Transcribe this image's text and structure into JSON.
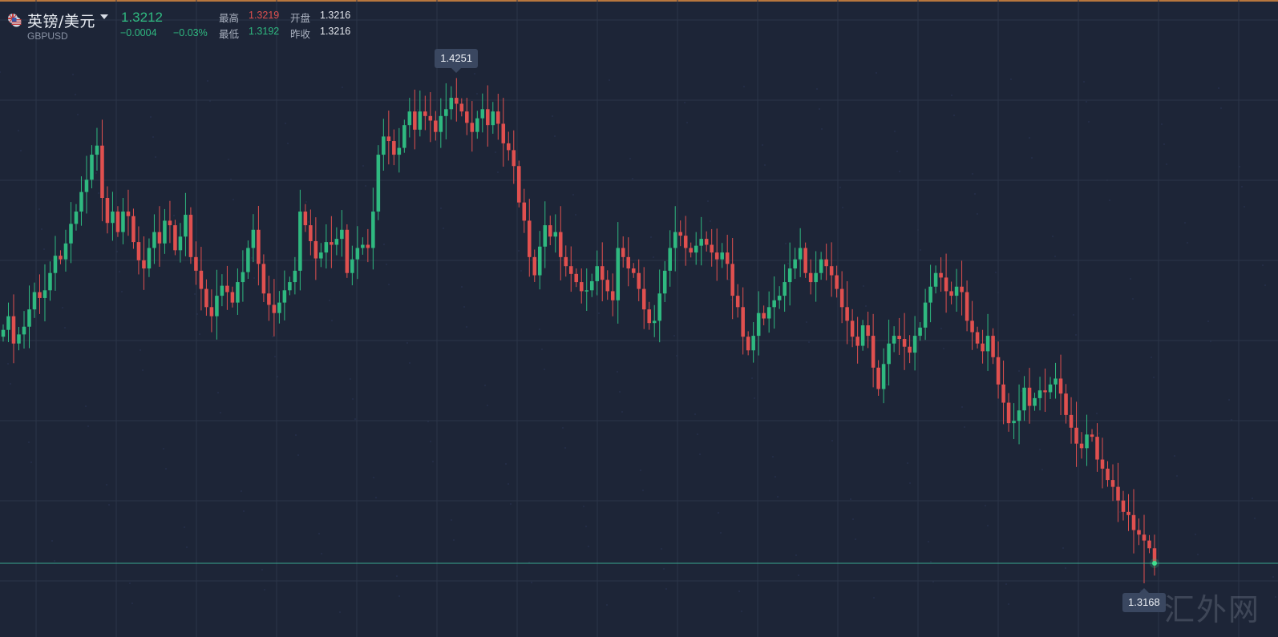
{
  "header": {
    "symbol_name": "英镑/美元",
    "symbol_code": "GBPUSD",
    "last_price": "1.3212",
    "change": "−0.0004",
    "change_pct": "−0.03%",
    "high_label": "最高",
    "high_value": "1.3219",
    "low_label": "最低",
    "low_value": "1.3192",
    "open_label": "开盘",
    "open_value": "1.3216",
    "prev_close_label": "昨收",
    "prev_close_value": "1.3216"
  },
  "markers": {
    "high": "1.4251",
    "low": "1.3168"
  },
  "watermark": "汇外网",
  "colors": {
    "up": "#2fb980",
    "down": "#e0504f",
    "background": "#1d2537",
    "grid": "#2c3549",
    "current_price_line": "#39a78f",
    "accent_top": "#b8773e"
  },
  "chart_data": {
    "type": "candlestick",
    "symbol": "GBPUSD",
    "ylim": [
      1.305,
      1.445
    ],
    "y_max_marker": 1.4251,
    "y_min_marker": 1.3168,
    "last": 1.3212,
    "grid": true,
    "closes": [
      1.3725,
      1.3755,
      1.3695,
      1.3715,
      1.3732,
      1.377,
      1.3808,
      1.3795,
      1.3812,
      1.385,
      1.3888,
      1.388,
      1.3915,
      1.3958,
      1.3985,
      1.4028,
      1.4055,
      1.411,
      1.413,
      1.4015,
      1.396,
      1.3985,
      1.394,
      1.3985,
      1.3975,
      1.3918,
      1.3878,
      1.386,
      1.3905,
      1.394,
      1.3915,
      1.3965,
      1.3955,
      1.39,
      1.393,
      1.3978,
      1.3885,
      1.3855,
      1.3815,
      1.3775,
      1.3755,
      1.38,
      1.3822,
      1.3808,
      1.3785,
      1.383,
      1.3852,
      1.3905,
      1.3945,
      1.387,
      1.3805,
      1.378,
      1.3762,
      1.3785,
      1.3812,
      1.383,
      1.3855,
      1.3985,
      1.3955,
      1.392,
      1.3882,
      1.3895,
      1.3918,
      1.3912,
      1.3925,
      1.3945,
      1.385,
      1.388,
      1.3905,
      1.3912,
      1.3905,
      1.3985,
      1.411,
      1.415,
      1.414,
      1.411,
      1.4125,
      1.4175,
      1.4205,
      1.4165,
      1.4205,
      1.4195,
      1.4185,
      1.416,
      1.4195,
      1.421,
      1.4235,
      1.4222,
      1.4205,
      1.418,
      1.416,
      1.419,
      1.421,
      1.4175,
      1.4205,
      1.4178,
      1.4135,
      1.412,
      1.4085,
      1.4005,
      1.3965,
      1.3885,
      1.3845,
      1.3908,
      1.3955,
      1.393,
      1.394,
      1.3885,
      1.3865,
      1.3848,
      1.383,
      1.381,
      1.3812,
      1.3832,
      1.3865,
      1.3835,
      1.381,
      1.379,
      1.3905,
      1.3885,
      1.386,
      1.385,
      1.3815,
      1.377,
      1.374,
      1.3745,
      1.3805,
      1.3855,
      1.3905,
      1.394,
      1.3932,
      1.3905,
      1.3895,
      1.391,
      1.3925,
      1.3912,
      1.3895,
      1.388,
      1.3895,
      1.387,
      1.38,
      1.3775,
      1.371,
      1.368,
      1.3712,
      1.3762,
      1.375,
      1.3775,
      1.379,
      1.38,
      1.383,
      1.386,
      1.388,
      1.3905,
      1.385,
      1.383,
      1.385,
      1.388,
      1.3865,
      1.3845,
      1.3815,
      1.3775,
      1.3745,
      1.371,
      1.369,
      1.3735,
      1.3712,
      1.3642,
      1.3595,
      1.365,
      1.3695,
      1.3712,
      1.3705,
      1.3688,
      1.3675,
      1.3712,
      1.373,
      1.3785,
      1.382,
      1.385,
      1.384,
      1.381,
      1.38,
      1.382,
      1.3808,
      1.3745,
      1.372,
      1.3695,
      1.3678,
      1.3712,
      1.3665,
      1.3605,
      1.3565,
      1.352,
      1.3525,
      1.3548,
      1.3598,
      1.3558,
      1.3575,
      1.3592,
      1.3588,
      1.3605,
      1.3618,
      1.3585,
      1.3538,
      1.351,
      1.3475,
      1.3465,
      1.3495,
      1.349,
      1.344,
      1.342,
      1.3395,
      1.338,
      1.335,
      1.3325,
      1.3318,
      1.3285,
      1.3275,
      1.3262,
      1.3245,
      1.3212
    ]
  }
}
